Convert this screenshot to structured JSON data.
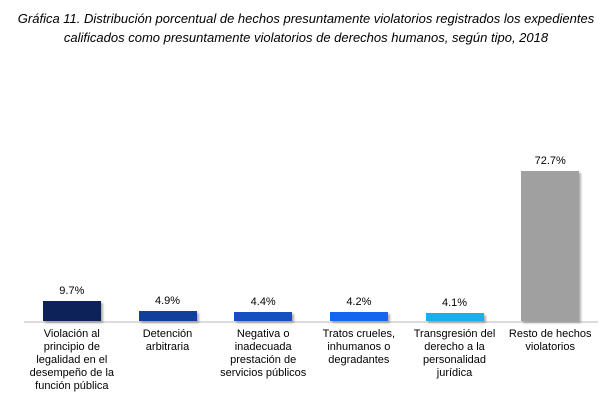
{
  "title": "Gráfica 11. Distribución porcentual de hechos presuntamente violatorios registrados los expedientes calificados como presuntamente violatorios de derechos humanos, según tipo, 2018",
  "chart_data": {
    "type": "bar",
    "title": "Gráfica 11. Distribución porcentual de hechos presuntamente violatorios registrados los expedientes calificados como presuntamente violatorios de derechos humanos, según tipo, 2018",
    "categories": [
      "Violación al principio de legalidad en el desempeño de la función pública",
      "Detención arbitraria",
      "Negativa o inadecuada prestación de servicios públicos",
      "Tratos crueles, inhumanos o degradantes",
      "Transgresión del derecho a la personalidad jurídica",
      "Resto de hechos violatorios"
    ],
    "values": [
      9.7,
      4.9,
      4.4,
      4.2,
      4.1,
      72.7
    ],
    "value_labels": [
      "9.7%",
      "4.9%",
      "4.4%",
      "4.2%",
      "4.1%",
      "72.7%"
    ],
    "bar_colors": [
      "#0d2259",
      "#123f9c",
      "#1450c0",
      "#1566ee",
      "#1dade9",
      "#a0a0a0"
    ],
    "unit": "%",
    "xlabel": "",
    "ylabel": "",
    "ylim": [
      0,
      80
    ],
    "grid": false,
    "legend": false,
    "axis_line_color": "#dcdcdc"
  }
}
